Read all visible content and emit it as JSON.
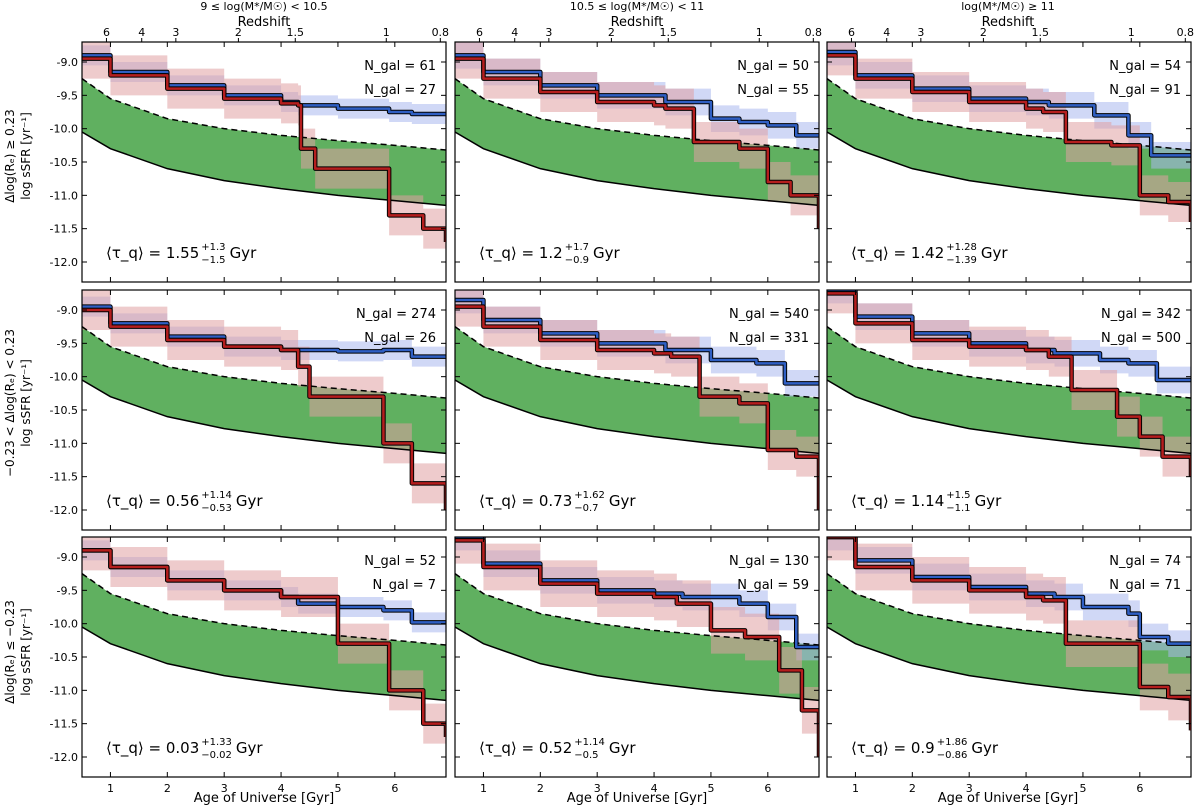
{
  "colors": {
    "blue_line": "#2f5fc4",
    "blue_band": "#aab8ef",
    "red_line": "#b51e1e",
    "red_band": "#e0a0a2",
    "green_band": "#44a244",
    "outline": "#000000"
  },
  "columns": [
    {
      "mass_label": "9 ≤ log(M*/M☉) < 10.5",
      "redshift_label": "Redshift"
    },
    {
      "mass_label": "10.5 ≤ log(M*/M☉) < 11",
      "redshift_label": "Redshift"
    },
    {
      "mass_label": "log(M*/M☉) ≥ 11",
      "redshift_label": "Redshift"
    }
  ],
  "rows": [
    {
      "ylabel_top": "Δlog(Rₑ) ≥ 0.23",
      "ylabel_bottom": "log sSFR [yr⁻¹]"
    },
    {
      "ylabel_top": "−0.23 < Δlog(Rₑ) < 0.23",
      "ylabel_bottom": "log sSFR [yr⁻¹]"
    },
    {
      "ylabel_top": "Δlog(Rₑ) ≤ −0.23",
      "ylabel_bottom": "log sSFR [yr⁻¹]"
    }
  ],
  "xlabel": "Age of Universe [Gyr]",
  "chart_data": {
    "type": "line",
    "xlim": [
      0.5,
      6.9
    ],
    "ylim": [
      -12.3,
      -8.7
    ],
    "x_ticks": [
      1,
      2,
      3,
      4,
      5,
      6
    ],
    "y_ticks": [
      -9.0,
      -9.5,
      -10.0,
      -10.5,
      -11.0,
      -11.5,
      -12.0
    ],
    "redshift_ticks": [
      {
        "z": "6",
        "age": 0.93
      },
      {
        "z": "4",
        "age": 1.55
      },
      {
        "z": "3",
        "age": 2.15
      },
      {
        "z": "2",
        "age": 3.25
      },
      {
        "z": "1.5",
        "age": 4.25
      },
      {
        "z": "1",
        "age": 5.85
      },
      {
        "z": "0.8",
        "age": 6.8
      }
    ],
    "green_valley": {
      "upper": [
        [
          0.5,
          -9.25
        ],
        [
          1.0,
          -9.55
        ],
        [
          2.0,
          -9.85
        ],
        [
          3.0,
          -10.0
        ],
        [
          4.0,
          -10.1
        ],
        [
          5.0,
          -10.18
        ],
        [
          6.0,
          -10.25
        ],
        [
          6.9,
          -10.32
        ]
      ],
      "lower": [
        [
          0.5,
          -10.05
        ],
        [
          1.0,
          -10.3
        ],
        [
          2.0,
          -10.6
        ],
        [
          3.0,
          -10.78
        ],
        [
          4.0,
          -10.9
        ],
        [
          5.0,
          -11.0
        ],
        [
          6.0,
          -11.08
        ],
        [
          6.9,
          -11.15
        ]
      ]
    },
    "panels": [
      {
        "n_blue": "N_gal = 61",
        "n_red": "N_gal = 27",
        "tau": "⟨τ_q⟩ = 1.55",
        "tau_sup": "+1.3",
        "tau_sub": "−1.5",
        "tau_unit": "Gyr",
        "blue": {
          "x": [
            0.5,
            1.0,
            2.0,
            3.0,
            4.0,
            4.3,
            5.0,
            5.5,
            5.9,
            6.3,
            6.9
          ],
          "y": [
            -8.9,
            -9.15,
            -9.35,
            -9.5,
            -9.6,
            -9.65,
            -9.7,
            -9.7,
            -9.75,
            -9.78,
            -9.8
          ],
          "band_width": 0.15
        },
        "red": {
          "x": [
            0.5,
            1.0,
            2.0,
            3.0,
            4.0,
            4.3,
            4.35,
            4.6,
            5.3,
            5.9,
            6.5,
            6.9
          ],
          "y": [
            -8.95,
            -9.2,
            -9.4,
            -9.55,
            -9.62,
            -9.65,
            -10.3,
            -10.6,
            -10.6,
            -11.3,
            -11.5,
            -11.7
          ],
          "band_width": 0.3
        }
      },
      {
        "n_blue": "N_gal = 50",
        "n_red": "N_gal = 55",
        "tau": "⟨τ_q⟩ = 1.2",
        "tau_sup": "+1.7",
        "tau_sub": "−0.9",
        "tau_unit": "Gyr",
        "blue": {
          "x": [
            0.5,
            1.0,
            2.0,
            3.0,
            4.2,
            5.0,
            5.5,
            6.0,
            6.5,
            6.9
          ],
          "y": [
            -8.9,
            -9.15,
            -9.35,
            -9.5,
            -9.6,
            -9.85,
            -9.9,
            -9.95,
            -10.1,
            -10.1
          ],
          "band_width": 0.2
        },
        "red": {
          "x": [
            0.5,
            1.0,
            2.0,
            3.0,
            4.0,
            4.2,
            4.7,
            5.5,
            6.0,
            6.4,
            6.9
          ],
          "y": [
            -8.95,
            -9.25,
            -9.45,
            -9.6,
            -9.65,
            -9.7,
            -10.2,
            -10.3,
            -10.8,
            -11.0,
            -11.5
          ],
          "band_width": 0.3
        }
      },
      {
        "n_blue": "N_gal = 54",
        "n_red": "N_gal = 91",
        "tau": "⟨τ_q⟩ = 1.42",
        "tau_sup": "+1.28",
        "tau_sub": "−1.39",
        "tau_unit": "Gyr",
        "blue": {
          "x": [
            0.5,
            1.0,
            2.0,
            3.0,
            4.0,
            4.4,
            5.2,
            5.8,
            6.2,
            6.9
          ],
          "y": [
            -8.85,
            -9.2,
            -9.4,
            -9.55,
            -9.6,
            -9.65,
            -9.8,
            -10.1,
            -10.4,
            -10.4
          ],
          "band_width": 0.2
        },
        "red": {
          "x": [
            0.5,
            1.0,
            2.0,
            3.0,
            4.0,
            4.3,
            4.7,
            5.5,
            6.0,
            6.5,
            6.9
          ],
          "y": [
            -8.9,
            -9.25,
            -9.45,
            -9.6,
            -9.7,
            -9.75,
            -10.2,
            -10.25,
            -11.0,
            -11.1,
            -11.4
          ],
          "band_width": 0.3
        }
      },
      {
        "n_blue": "N_gal = 274",
        "n_red": "N_gal = 26",
        "tau": "⟨τ_q⟩ = 0.56",
        "tau_sup": "+1.14",
        "tau_sub": "−0.53",
        "tau_unit": "Gyr",
        "blue": {
          "x": [
            0.5,
            1.0,
            2.0,
            3.0,
            4.0,
            4.2,
            5.0,
            5.8,
            6.3,
            6.9
          ],
          "y": [
            -8.95,
            -9.2,
            -9.4,
            -9.55,
            -9.6,
            -9.6,
            -9.62,
            -9.6,
            -9.7,
            -9.72
          ],
          "band_width": 0.15
        },
        "red": {
          "x": [
            0.5,
            1.0,
            2.0,
            3.0,
            4.0,
            4.3,
            4.5,
            5.3,
            5.8,
            6.3,
            6.9
          ],
          "y": [
            -9.0,
            -9.25,
            -9.45,
            -9.55,
            -9.6,
            -9.85,
            -10.3,
            -10.3,
            -11.0,
            -11.6,
            -12.0
          ],
          "band_width": 0.3
        }
      },
      {
        "n_blue": "N_gal = 540",
        "n_red": "N_gal = 331",
        "tau": "⟨τ_q⟩ = 0.73",
        "tau_sup": "+1.62",
        "tau_sub": "−0.7",
        "tau_unit": "Gyr",
        "blue": {
          "x": [
            0.5,
            1.0,
            2.0,
            3.0,
            4.2,
            5.0,
            5.8,
            6.3,
            6.9
          ],
          "y": [
            -8.85,
            -9.15,
            -9.35,
            -9.5,
            -9.6,
            -9.75,
            -9.8,
            -10.1,
            -10.1
          ],
          "band_width": 0.2
        },
        "red": {
          "x": [
            0.5,
            1.0,
            2.0,
            3.0,
            4.0,
            4.3,
            4.8,
            5.5,
            6.0,
            6.5,
            6.9
          ],
          "y": [
            -8.95,
            -9.25,
            -9.45,
            -9.6,
            -9.65,
            -9.7,
            -10.3,
            -10.4,
            -11.1,
            -11.2,
            -12.0
          ],
          "band_width": 0.3
        }
      },
      {
        "n_blue": "N_gal = 342",
        "n_red": "N_gal = 500",
        "tau": "⟨τ_q⟩ = 1.14",
        "tau_sup": "+1.5",
        "tau_sub": "−1.1",
        "tau_unit": "Gyr",
        "blue": {
          "x": [
            0.5,
            1.0,
            2.0,
            3.0,
            4.0,
            4.5,
            5.3,
            5.8,
            6.3,
            6.9
          ],
          "y": [
            -8.7,
            -9.1,
            -9.35,
            -9.5,
            -9.6,
            -9.65,
            -9.75,
            -9.8,
            -10.05,
            -10.05
          ],
          "band_width": 0.2
        },
        "red": {
          "x": [
            0.5,
            1.0,
            2.0,
            3.0,
            4.0,
            4.4,
            4.8,
            5.6,
            6.0,
            6.4,
            6.9
          ],
          "y": [
            -8.75,
            -9.2,
            -9.45,
            -9.55,
            -9.6,
            -9.7,
            -10.2,
            -10.6,
            -10.9,
            -11.2,
            -11.5
          ],
          "band_width": 0.3
        }
      },
      {
        "n_blue": "N_gal = 52",
        "n_red": "N_gal = 7",
        "tau": "⟨τ_q⟩ = 0.03",
        "tau_sup": "+1.33",
        "tau_sub": "−0.02",
        "tau_unit": "Gyr",
        "blue": {
          "x": [
            0.5,
            1.0,
            2.0,
            3.0,
            4.0,
            4.3,
            5.0,
            5.8,
            6.3,
            6.9
          ],
          "y": [
            -8.9,
            -9.15,
            -9.35,
            -9.5,
            -9.6,
            -9.7,
            -9.75,
            -9.8,
            -9.98,
            -10.0
          ],
          "band_width": 0.15
        },
        "red": {
          "x": [
            0.5,
            1.0,
            2.0,
            3.0,
            4.0,
            4.3,
            5.0,
            5.9,
            6.5,
            6.9
          ],
          "y": [
            -8.9,
            -9.15,
            -9.35,
            -9.5,
            -9.6,
            -9.6,
            -10.3,
            -11.0,
            -11.5,
            -11.7
          ],
          "band_width": 0.3
        }
      },
      {
        "n_blue": "N_gal = 130",
        "n_red": "N_gal = 59",
        "tau": "⟨τ_q⟩ = 0.52",
        "tau_sup": "+1.14",
        "tau_sub": "−0.5",
        "tau_unit": "Gyr",
        "blue": {
          "x": [
            0.5,
            1.0,
            2.0,
            3.0,
            4.0,
            4.5,
            5.5,
            6.0,
            6.5,
            6.9
          ],
          "y": [
            -8.7,
            -9.1,
            -9.35,
            -9.5,
            -9.55,
            -9.6,
            -9.7,
            -9.9,
            -10.35,
            -10.35
          ],
          "band_width": 0.2
        },
        "red": {
          "x": [
            0.5,
            1.0,
            2.0,
            3.0,
            4.0,
            4.4,
            5.0,
            5.6,
            6.2,
            6.6,
            6.9
          ],
          "y": [
            -8.75,
            -9.15,
            -9.4,
            -9.55,
            -9.6,
            -9.7,
            -10.1,
            -10.2,
            -10.7,
            -11.3,
            -12.0
          ],
          "band_width": 0.35
        }
      },
      {
        "n_blue": "N_gal = 74",
        "n_red": "N_gal = 71",
        "tau": "⟨τ_q⟩ = 0.9",
        "tau_sup": "+1.86",
        "tau_sub": "−0.86",
        "tau_unit": "Gyr",
        "blue": {
          "x": [
            0.5,
            1.0,
            2.0,
            3.0,
            4.0,
            4.5,
            5.0,
            5.8,
            6.0,
            6.5,
            6.9
          ],
          "y": [
            -8.7,
            -9.05,
            -9.3,
            -9.45,
            -9.55,
            -9.6,
            -9.75,
            -9.85,
            -10.2,
            -10.3,
            -10.3
          ],
          "band_width": 0.2
        },
        "red": {
          "x": [
            0.5,
            1.0,
            2.0,
            3.0,
            4.0,
            4.3,
            4.7,
            5.6,
            6.0,
            6.5,
            6.9
          ],
          "y": [
            -8.7,
            -9.15,
            -9.35,
            -9.5,
            -9.6,
            -9.65,
            -10.3,
            -10.3,
            -10.95,
            -11.1,
            -11.6
          ],
          "band_width": 0.35
        }
      }
    ]
  }
}
